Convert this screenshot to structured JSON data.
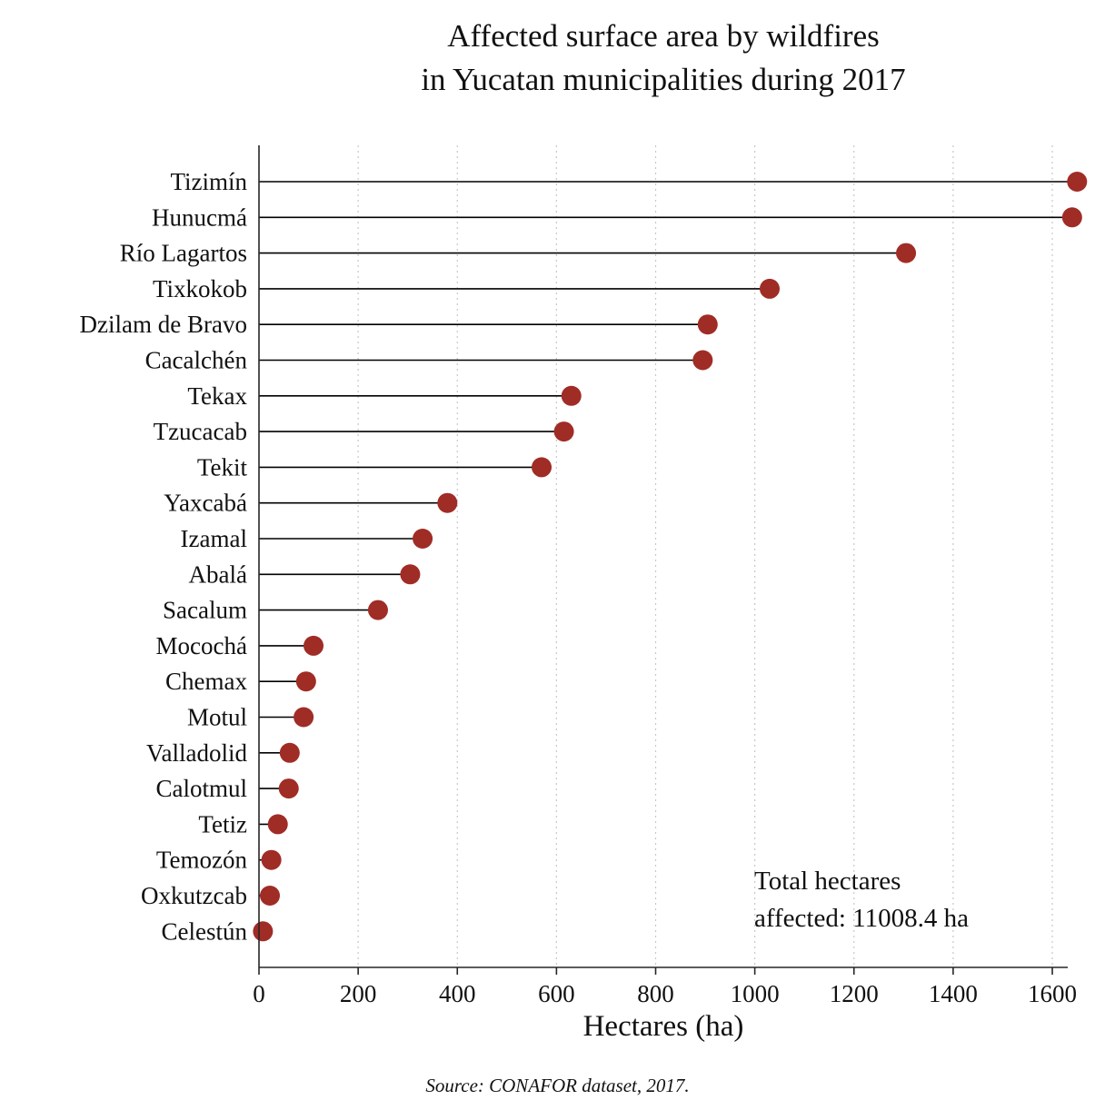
{
  "title": {
    "line1": "Affected surface area by wildfires",
    "line2": "in Yucatan municipalities during 2017"
  },
  "annotation": {
    "line1": "Total hectares",
    "line2": "affected: 11008.4 ha"
  },
  "source": "Source: CONAFOR dataset, 2017.",
  "chart_data": {
    "type": "scatter",
    "style": "lollipop",
    "orientation": "horizontal",
    "title": "Affected surface area by wildfires in Yucatan municipalities during 2017",
    "xlabel": "Hectares (ha)",
    "ylabel": "",
    "categories": [
      "Tizimín",
      "Hunucmá",
      "Río Lagartos",
      "Tixkokob",
      "Dzilam de Bravo",
      "Cacalchén",
      "Tekax",
      "Tzucacab",
      "Tekit",
      "Yaxcabá",
      "Izamal",
      "Abalá",
      "Sacalum",
      "Mocochá",
      "Chemax",
      "Motul",
      "Valladolid",
      "Calotmul",
      "Tetiz",
      "Temozón",
      "Oxkutzcab",
      "Celestún"
    ],
    "values": [
      1650,
      1640,
      1305,
      1030,
      905,
      895,
      630,
      615,
      570,
      380,
      330,
      305,
      240,
      110,
      95,
      90,
      62,
      60,
      38,
      25,
      22,
      8
    ],
    "total_hectares": 11008.4,
    "xlim": [
      0,
      1630
    ],
    "xticks": [
      0,
      200,
      400,
      600,
      800,
      1000,
      1200,
      1400,
      1600
    ],
    "grid": "dotted-vertical",
    "dot_color": "#a02c26",
    "stem_color": "#000000",
    "axis_color": "#262626",
    "grid_color": "#c8c8c8"
  }
}
